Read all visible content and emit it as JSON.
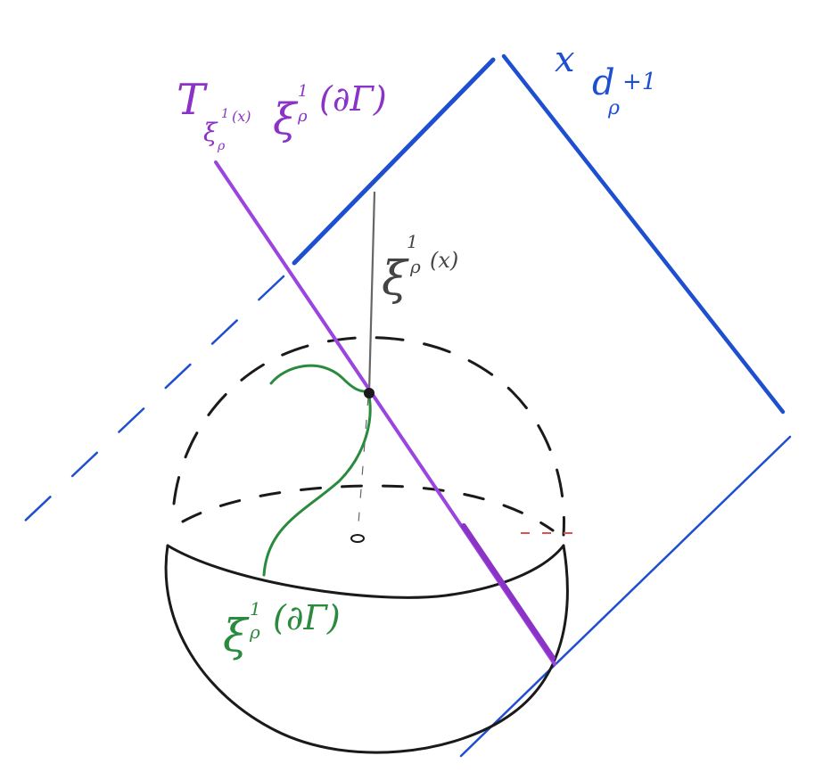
{
  "labels": {
    "tangent": {
      "main": "T",
      "sub_xi": "ξ",
      "sub_sup": "1",
      "sub_rho": "ρ",
      "sub_arg": "(x)",
      "xi": "ξ",
      "xi_sup": "1",
      "xi_rho": "ρ",
      "arg": "(∂Γ)",
      "color": "#8a33c6"
    },
    "hyperplane": {
      "symbol": "x",
      "d": "d",
      "d_sub": "ρ",
      "d_sup": "+1",
      "color": "#1f4fd1"
    },
    "point": {
      "xi": "ξ",
      "xi_sup": "1",
      "xi_rho": "ρ",
      "arg": "(x)",
      "color": "#444444"
    },
    "curve": {
      "xi": "ξ",
      "xi_sup": "1",
      "xi_rho": "ρ",
      "arg": "(∂Γ)",
      "color": "#2a8a3e"
    }
  },
  "colors": {
    "sphere": "#1a1a1a",
    "purple_line": "#9b45e0",
    "blue_plane": "#1f4fd1",
    "green_curve": "#2a8a3e",
    "red_tick": "#e05050",
    "gray_line": "#666666"
  }
}
